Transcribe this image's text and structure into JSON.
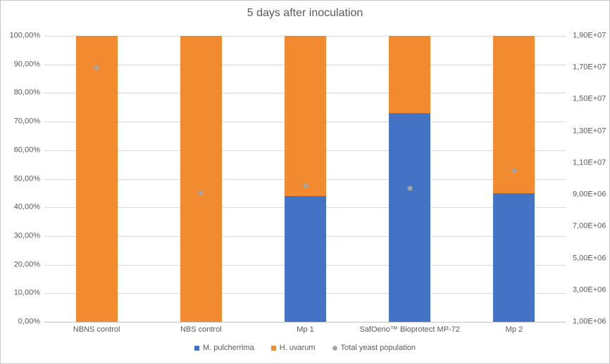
{
  "colors": {
    "gridline": "#D9D9D9",
    "axis_line": "#BFBFBF",
    "text": "#595959",
    "frame_border": "#C6C6C6",
    "background": "#FFFFFF"
  },
  "chart_data": {
    "type": "bar",
    "subtype": "stacked-100pct-columns-with-scatter-overlay",
    "title": "5 days after inoculation",
    "grid": true,
    "legend_position": "bottom",
    "categories": [
      "NBNS control",
      "NBS control",
      "Mp 1",
      "SafOeno™ Bioprotect MP-72",
      "Mp 2"
    ],
    "series": [
      {
        "name": "M. pulcherrima",
        "type": "bar",
        "axis": "left",
        "marker": "square",
        "color": "#4472C4",
        "values_percent": [
          0,
          0,
          44,
          73,
          45
        ]
      },
      {
        "name": "H. uvarum",
        "type": "bar",
        "axis": "left",
        "marker": "square",
        "color": "#F28B30",
        "values_percent": [
          100,
          100,
          56,
          27,
          55
        ]
      },
      {
        "name": "Total yeast population",
        "type": "scatter",
        "axis": "right",
        "marker": "circle",
        "color": "#A5A5A5",
        "values": [
          17000000,
          9100000,
          9600000,
          9400000,
          10500000
        ]
      }
    ],
    "left_axis": {
      "min": 0,
      "max": 100,
      "step": 10,
      "tick_labels": [
        "0,00%",
        "10,00%",
        "20,00%",
        "30,00%",
        "40,00%",
        "50,00%",
        "60,00%",
        "70,00%",
        "80,00%",
        "90,00%",
        "100,00%"
      ]
    },
    "right_axis": {
      "min": 1000000,
      "max": 19000000,
      "step": 2000000,
      "tick_labels": [
        "1,00E+06",
        "3,00E+06",
        "5,00E+06",
        "7,00E+06",
        "9,00E+06",
        "1,10E+07",
        "1,30E+07",
        "1,50E+07",
        "1,70E+07",
        "1,90E+07"
      ]
    }
  }
}
